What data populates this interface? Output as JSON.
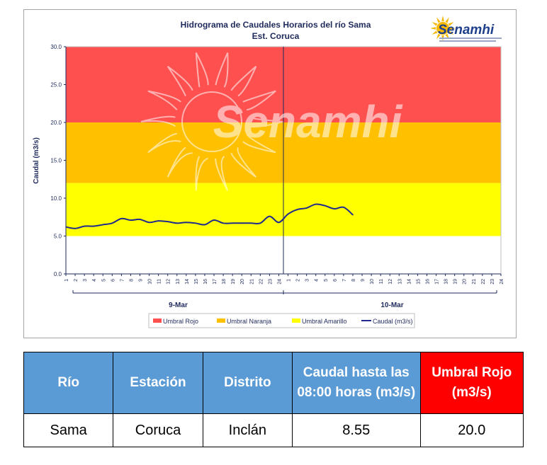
{
  "logo": {
    "text": "Senamhi"
  },
  "watermark": {
    "text": "Senamhi"
  },
  "chart_data": {
    "type": "line",
    "title": "Hidrograma de Caudales Horarios del río Sama",
    "subtitle": "Est. Coruca",
    "ylabel": "Caudal (m3/s)",
    "ylim": [
      0,
      30
    ],
    "yticks": [
      "0.0",
      "5.0",
      "10.0",
      "15.0",
      "20.0",
      "25.0",
      "30.0"
    ],
    "x_hours": [
      "1",
      "2",
      "3",
      "4",
      "5",
      "6",
      "7",
      "8",
      "9",
      "10",
      "11",
      "12",
      "13",
      "14",
      "15",
      "16",
      "17",
      "18",
      "19",
      "20",
      "21",
      "22",
      "23",
      "24",
      "1",
      "2",
      "3",
      "4",
      "5",
      "6",
      "7",
      "8",
      "9",
      "10",
      "11",
      "12",
      "13",
      "14",
      "15",
      "16",
      "17",
      "18",
      "19",
      "20",
      "21",
      "22",
      "23",
      "24"
    ],
    "day_labels": [
      "9-Mar",
      "10-Mar"
    ],
    "bands": [
      {
        "name": "Umbral Rojo",
        "from": 20,
        "to": 30,
        "color": "#ff5050"
      },
      {
        "name": "Umbral Naranja",
        "from": 12,
        "to": 20,
        "color": "#ffc000"
      },
      {
        "name": "Umbral Amarillo",
        "from": 5,
        "to": 12,
        "color": "#ffff00"
      }
    ],
    "series": [
      {
        "name": "Caudal (m3/s)",
        "color": "#1f2a8c",
        "values": [
          6.2,
          6.0,
          6.3,
          6.3,
          6.5,
          6.7,
          7.3,
          7.1,
          7.2,
          6.8,
          7.0,
          6.9,
          6.7,
          6.8,
          6.7,
          6.5,
          7.1,
          6.7,
          6.7,
          6.7,
          6.7,
          6.7,
          7.6,
          6.8,
          7.9,
          8.5,
          8.7,
          9.2,
          9.0,
          8.6,
          8.8,
          7.8
        ]
      }
    ],
    "legend_position": "bottom"
  },
  "table": {
    "headers": [
      "Río",
      "Estación",
      "Distrito",
      "Caudal hasta las 08:00 horas (m3/s)",
      "Umbral Rojo (m3/s)"
    ],
    "row": [
      "Sama",
      "Coruca",
      "Inclán",
      "8.55",
      "20.0"
    ]
  }
}
